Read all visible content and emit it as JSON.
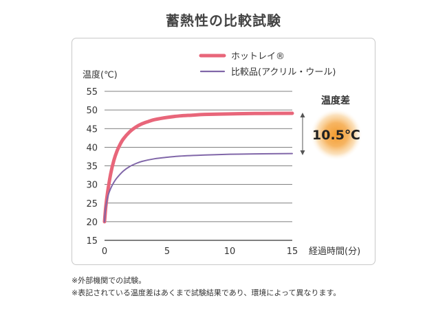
{
  "title": "蓄熱性の比較試験",
  "chart_data": {
    "type": "line",
    "ylabel": "温度(℃)",
    "xlabel": "経過時間(分)",
    "xlim": [
      0,
      15
    ],
    "ylim": [
      15,
      55
    ],
    "xticks": [
      0,
      5,
      10,
      15
    ],
    "yticks": [
      15,
      20,
      25,
      30,
      35,
      40,
      45,
      50,
      55
    ],
    "grid": "horizontal",
    "legend_position": "top",
    "series": [
      {
        "name": "ホットレイ®",
        "color": "#e8667a",
        "x": [
          0,
          0.1,
          0.25,
          0.5,
          0.75,
          1,
          1.25,
          1.5,
          2,
          2.5,
          3,
          3.5,
          4,
          5,
          6,
          7,
          8,
          10,
          12,
          15
        ],
        "y": [
          20,
          24,
          28,
          33,
          36.5,
          39,
          40.8,
          42.2,
          44.1,
          45.4,
          46.3,
          46.9,
          47.4,
          48,
          48.4,
          48.6,
          48.8,
          48.95,
          49.05,
          49.1
        ]
      },
      {
        "name": "比較品(アクリル・ウール)",
        "color": "#8066a8",
        "x": [
          0,
          0.05,
          0.15,
          0.3,
          0.5,
          0.75,
          1,
          1.5,
          2,
          2.5,
          3,
          4,
          5,
          6,
          8,
          10,
          12,
          15
        ],
        "y": [
          20,
          22.5,
          25,
          27.2,
          29,
          30.6,
          31.8,
          33.6,
          34.8,
          35.6,
          36.2,
          36.9,
          37.3,
          37.6,
          37.9,
          38.1,
          38.2,
          38.3
        ]
      }
    ],
    "annotation": {
      "label": "温度差",
      "value": "10.5℃",
      "badge_color": "#f5a63a"
    }
  },
  "notes": [
    "※外部機関での試験。",
    "※表記されている温度差はあくまで試験結果であり、環境によって異なります。"
  ]
}
